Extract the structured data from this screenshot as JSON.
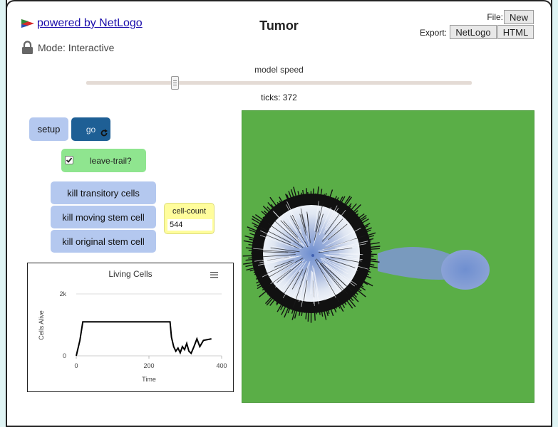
{
  "header": {
    "powered_by": "powered by NetLogo",
    "mode": "Mode: Interactive",
    "title": "Tumor",
    "file_label": "File:",
    "new_button": "New",
    "export_label": "Export:",
    "export_netlogo": "NetLogo",
    "export_html": "HTML"
  },
  "speed": {
    "label": "model speed",
    "value": 0.23
  },
  "ticks_text": "ticks: 372",
  "buttons": {
    "setup": "setup",
    "go": "go",
    "kill_transitory": "kill transitory cells",
    "kill_moving": "kill moving stem cell",
    "kill_original": "kill original stem cell"
  },
  "switch": {
    "label": "leave-trail?",
    "checked": true
  },
  "monitor": {
    "label": "cell-count",
    "value": "544"
  },
  "chart_data": {
    "type": "line",
    "title": "Living Cells",
    "xlabel": "Time",
    "ylabel": "Cells Alive",
    "xlim": [
      0,
      400
    ],
    "ylim": [
      0,
      2000
    ],
    "x_ticks": [
      "0",
      "200",
      "400"
    ],
    "y_ticks": [
      "0",
      "2k"
    ],
    "series": [
      {
        "color": "#000000",
        "points": [
          [
            0,
            0
          ],
          [
            10,
            500
          ],
          [
            18,
            1100
          ],
          [
            30,
            1100
          ],
          [
            100,
            1100
          ],
          [
            200,
            1100
          ],
          [
            258,
            1100
          ],
          [
            262,
            600
          ],
          [
            268,
            300
          ],
          [
            274,
            150
          ],
          [
            280,
            250
          ],
          [
            286,
            100
          ],
          [
            292,
            300
          ],
          [
            298,
            200
          ],
          [
            304,
            400
          ],
          [
            310,
            150
          ],
          [
            316,
            80
          ],
          [
            324,
            300
          ],
          [
            332,
            550
          ],
          [
            340,
            300
          ],
          [
            350,
            500
          ],
          [
            372,
            550
          ]
        ]
      }
    ]
  },
  "colors": {
    "world_bg": "#5aae47",
    "button": "#b4c8ef",
    "go_button": "#1e5f95",
    "switch": "#8fe58f",
    "monitor": "#fffd9c"
  }
}
